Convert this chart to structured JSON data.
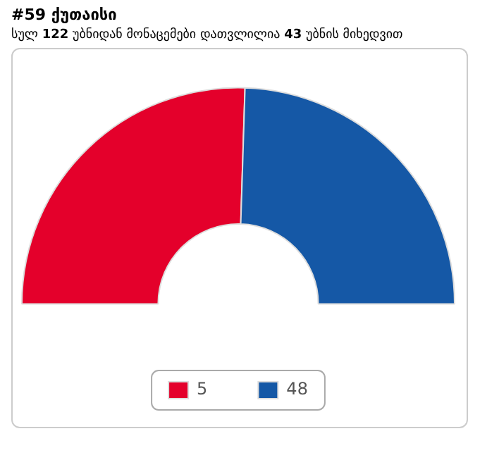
{
  "chart_data": {
    "type": "donut",
    "title": "#59 ქუთაისი",
    "subtitle": "სულ 122 უბნიდან მონაცემები დათვლილია 43 უბნის მიხედვით",
    "categories": [
      "5",
      "48"
    ],
    "values": [
      51,
      49
    ],
    "colors": [
      "#e4002b",
      "#1558a6"
    ],
    "legend": "bottom"
  }
}
